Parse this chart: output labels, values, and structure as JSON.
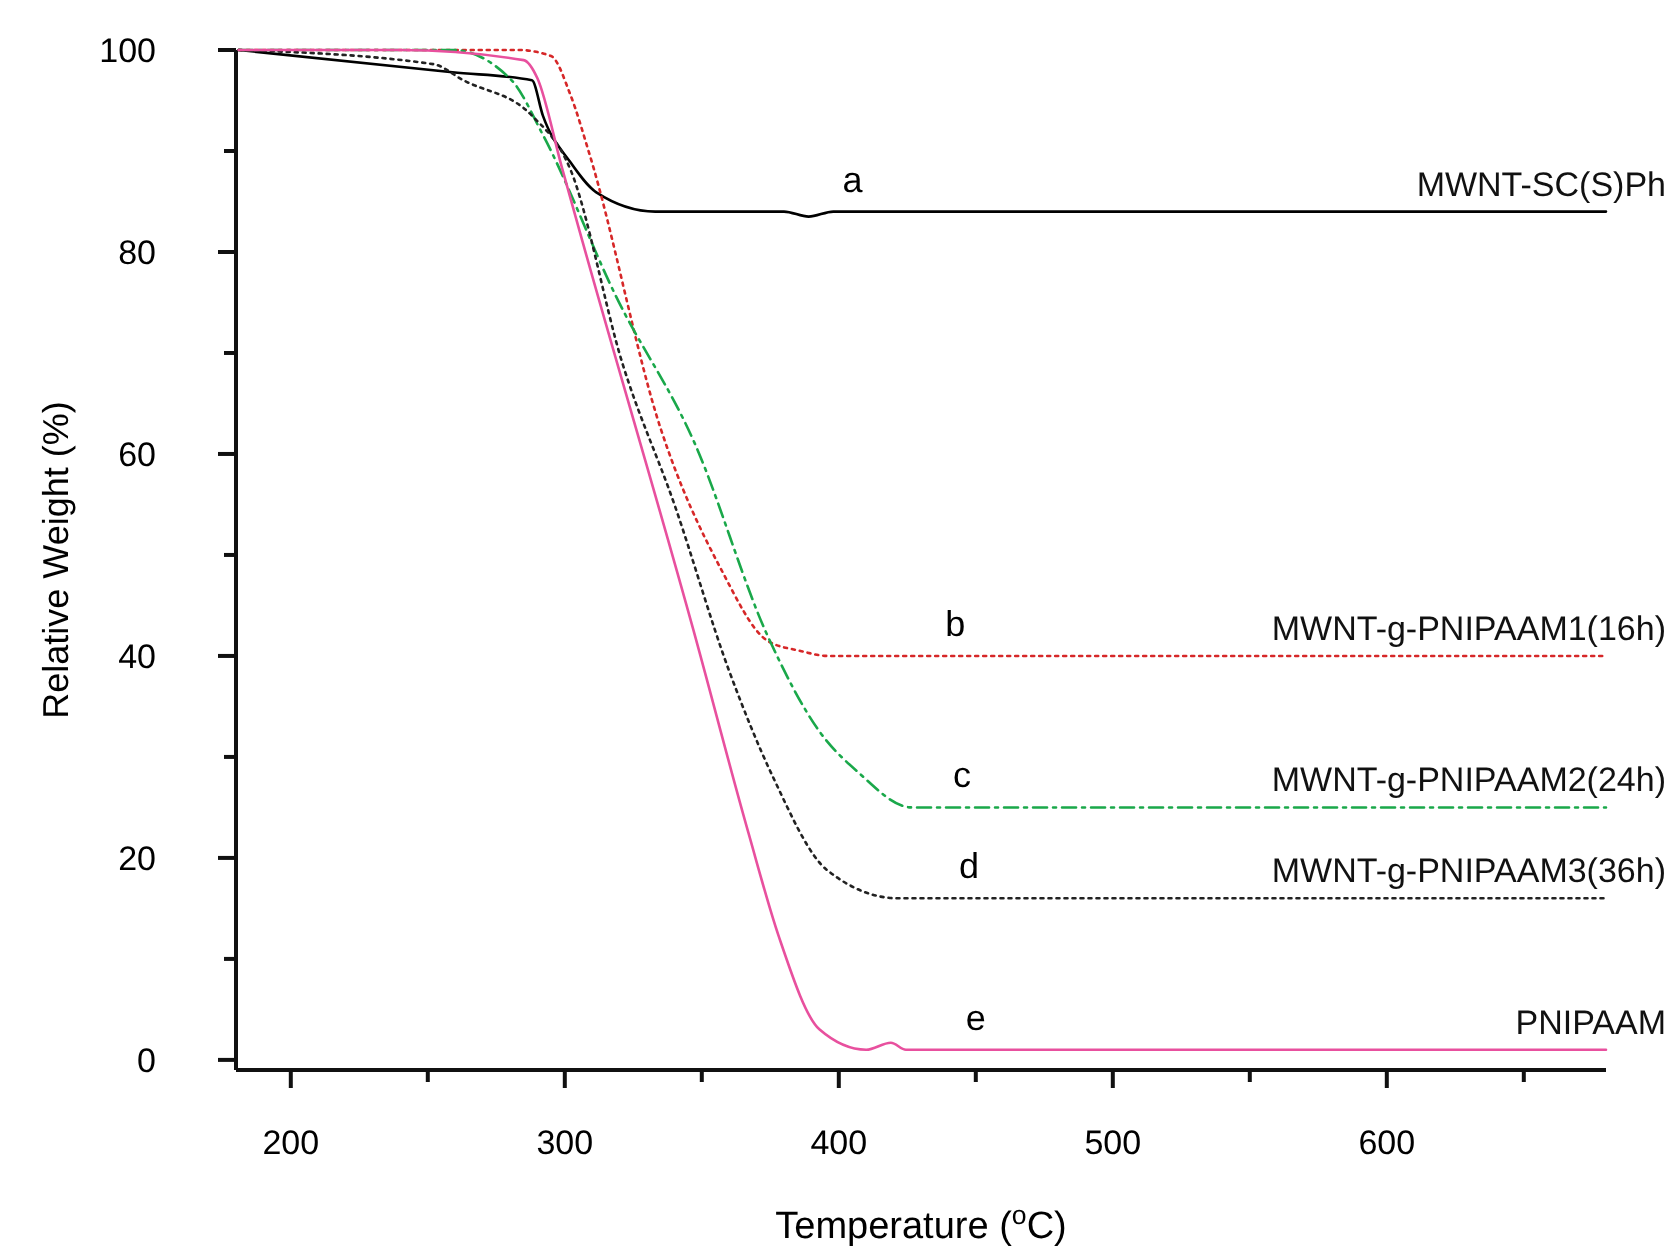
{
  "chart_data": {
    "type": "line",
    "xlabel": "Temperature ($^{o}$C)",
    "ylabel": "Relative Weight (%)",
    "xlim": [
      180,
      680
    ],
    "ylim": [
      -1,
      100
    ],
    "xticks": [
      200,
      {
        "value": 250,
        "label": null
      },
      300,
      {
        "value": 350,
        "label": null
      },
      400,
      {
        "value": 450,
        "label": null
      },
      500,
      {
        "value": 550,
        "label": null
      },
      600,
      {
        "value": 650,
        "label": null
      }
    ],
    "yticks": [
      0,
      {
        "value": 10,
        "label": null
      },
      20,
      {
        "value": 30,
        "label": null
      },
      40,
      {
        "value": 50,
        "label": null
      },
      60,
      {
        "value": 70,
        "label": null
      },
      80,
      {
        "value": 90,
        "label": null
      },
      100
    ],
    "grid": false,
    "series": [
      {
        "name": "MWNT-SC(S)Ph",
        "color": "#000000",
        "line_style": "solid",
        "x": [
          181,
          259,
          288,
          292,
          302,
          311.5,
          333,
          380,
          389,
          398,
          680
        ],
        "values": [
          100,
          97.8,
          97,
          93.5,
          88.9,
          85.9,
          84,
          84,
          83.5,
          84,
          84
        ]
      },
      {
        "name": "MWNT-g-PNIPAAM1(16h)",
        "color": "#d62728",
        "line_style": "dotted",
        "x": [
          181,
          283,
          295,
          302,
          309,
          335,
          357,
          374,
          386,
          396,
          680
        ],
        "values": [
          100,
          100,
          99.4,
          95.6,
          89.7,
          62.5,
          48.6,
          41.5,
          40.5,
          40,
          40
        ]
      },
      {
        "name": "MWNT-g-PNIPAAM2(24h)",
        "color": "#1aa84a",
        "line_style": "dashed",
        "x": [
          181,
          259,
          280.6,
          292,
          318.7,
          347.5,
          374,
          393,
          407,
          426.6,
          680
        ],
        "values": [
          100,
          100,
          97,
          91.6,
          75.6,
          61,
          42,
          32.5,
          28.5,
          25,
          25
        ]
      },
      {
        "name": "MWNT-g-PNIPAAM3(36h)",
        "color": "#222222",
        "line_style": "dotted",
        "x": [
          181,
          252,
          263,
          288,
          302,
          321,
          340,
          360,
          376,
          395.7,
          421.6,
          680
        ],
        "values": [
          100,
          98.6,
          97,
          93.5,
          88.2,
          69,
          55,
          38.5,
          28,
          18.8,
          16,
          16
        ]
      },
      {
        "name": "PNIPAAM",
        "color": "#e8509e",
        "line_style": "solid",
        "x": [
          181,
          240,
          285,
          290,
          299,
          306.5,
          347,
          367,
          378,
          393,
          410,
          419,
          424.5,
          680
        ],
        "values": [
          100,
          100,
          99,
          97.2,
          88.3,
          81,
          42.5,
          22.5,
          12.3,
          3,
          1,
          1.7,
          1,
          1
        ]
      }
    ],
    "annotations": [
      "a",
      "b",
      "c",
      "d",
      "e"
    ]
  }
}
